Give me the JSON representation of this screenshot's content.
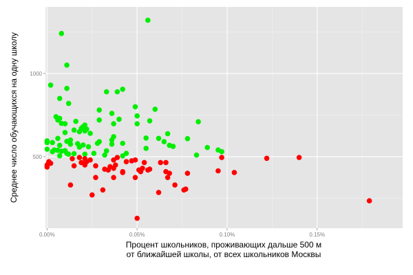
{
  "chart_data": {
    "type": "scatter",
    "xlabel": [
      "Процент школьников, проживающих дальше 500 м",
      "от ближайшей школы, от всех школьников Москвы"
    ],
    "ylabel": "Среднее число обучающихся на одну школу",
    "x_unit": "%",
    "xlim": [
      -0.0009,
      0.1975
    ],
    "ylim": [
      70,
      1400
    ],
    "x_ticks": [
      {
        "value": 0.0,
        "label": "0.00%"
      },
      {
        "value": 0.05,
        "label": "0.05%"
      },
      {
        "value": 0.1,
        "label": "0.10%"
      },
      {
        "value": 0.15,
        "label": "0.15%"
      }
    ],
    "y_ticks": [
      {
        "value": 500,
        "label": "500"
      },
      {
        "value": 1000,
        "label": "1000"
      }
    ],
    "grid": true,
    "legend": "none",
    "series": [
      {
        "color": "#00ee00",
        "points": [
          [
            0.008,
            1240
          ],
          [
            0.056,
            1320
          ],
          [
            0.011,
            1050
          ],
          [
            0.002,
            930
          ],
          [
            0.011,
            910
          ],
          [
            0.042,
            905
          ],
          [
            0.039,
            890
          ],
          [
            0.033,
            890
          ],
          [
            0.007,
            850
          ],
          [
            0.012,
            820
          ],
          [
            0.049,
            800
          ],
          [
            0.06,
            785
          ],
          [
            0.029,
            780
          ],
          [
            0.036,
            760
          ],
          [
            0.05,
            745
          ],
          [
            0.005,
            740
          ],
          [
            0.007,
            730
          ],
          [
            0.04,
            725
          ],
          [
            0.029,
            720
          ],
          [
            0.057,
            715
          ],
          [
            0.016,
            712
          ],
          [
            0.084,
            710
          ],
          [
            0.006,
            720
          ],
          [
            0.008,
            700
          ],
          [
            0.01,
            698
          ],
          [
            0.037,
            698
          ],
          [
            0.05,
            698
          ],
          [
            0.021,
            690
          ],
          [
            0.02,
            680
          ],
          [
            0.019,
            670
          ],
          [
            0.022,
            665
          ],
          [
            0.015,
            660
          ],
          [
            0.021,
            655
          ],
          [
            0.018,
            650
          ],
          [
            0.01,
            645
          ],
          [
            0.024,
            640
          ],
          [
            0.067,
            638
          ],
          [
            0.037,
            620
          ],
          [
            0.055,
            612
          ],
          [
            0.062,
            610
          ],
          [
            0.078,
            608
          ],
          [
            0.013,
            600
          ],
          [
            0.006,
            610
          ],
          [
            0.036,
            600
          ],
          [
            0.0,
            595
          ],
          [
            0.011,
            592
          ],
          [
            0.065,
            590
          ],
          [
            0.029,
            590
          ],
          [
            0.0,
            585
          ],
          [
            0.003,
            585
          ],
          [
            0.028,
            580
          ],
          [
            0.042,
            580
          ],
          [
            0.017,
            578
          ],
          [
            0.036,
            575
          ],
          [
            0.013,
            575
          ],
          [
            0.02,
            570
          ],
          [
            0.007,
            568
          ],
          [
            0.068,
            568
          ],
          [
            0.07,
            562
          ],
          [
            0.023,
            560
          ],
          [
            0.018,
            558
          ],
          [
            0.055,
            550
          ],
          [
            0.089,
            555
          ],
          [
            0.0,
            545
          ],
          [
            0.004,
            540
          ],
          [
            0.006,
            538
          ],
          [
            0.01,
            536
          ],
          [
            0.033,
            535
          ],
          [
            0.003,
            530
          ],
          [
            0.008,
            533
          ],
          [
            0.044,
            520
          ],
          [
            0.026,
            520
          ],
          [
            0.015,
            518
          ],
          [
            0.097,
            530
          ],
          [
            0.095,
            540
          ],
          [
            0.021,
            515
          ],
          [
            0.032,
            510
          ],
          [
            0.083,
            510
          ],
          [
            0.012,
            515
          ],
          [
            0.042,
            505
          ],
          [
            0.007,
            505
          ],
          [
            0.011,
            520
          ]
        ]
      },
      {
        "color": "#ff0000",
        "points": [
          [
            0.001,
            470
          ],
          [
            0.002,
            460
          ],
          [
            0.0,
            450
          ],
          [
            0.0,
            438
          ],
          [
            0.001,
            465
          ],
          [
            0.018,
            495
          ],
          [
            0.021,
            488
          ],
          [
            0.014,
            488
          ],
          [
            0.024,
            480
          ],
          [
            0.022,
            470
          ],
          [
            0.019,
            465
          ],
          [
            0.021,
            460
          ],
          [
            0.021,
            450
          ],
          [
            0.015,
            445
          ],
          [
            0.027,
            445
          ],
          [
            0.035,
            440
          ],
          [
            0.032,
            425
          ],
          [
            0.037,
            430
          ],
          [
            0.034,
            420
          ],
          [
            0.038,
            450
          ],
          [
            0.037,
            480
          ],
          [
            0.039,
            495
          ],
          [
            0.047,
            475
          ],
          [
            0.049,
            480
          ],
          [
            0.054,
            465
          ],
          [
            0.053,
            430
          ],
          [
            0.051,
            420
          ],
          [
            0.056,
            420
          ],
          [
            0.052,
            410
          ],
          [
            0.057,
            425
          ],
          [
            0.066,
            465
          ],
          [
            0.063,
            465
          ],
          [
            0.066,
            410
          ],
          [
            0.067,
            375
          ],
          [
            0.068,
            400
          ],
          [
            0.071,
            330
          ],
          [
            0.076,
            300
          ],
          [
            0.077,
            305
          ],
          [
            0.078,
            400
          ],
          [
            0.095,
            415
          ],
          [
            0.097,
            495
          ],
          [
            0.104,
            405
          ],
          [
            0.122,
            490
          ],
          [
            0.14,
            495
          ],
          [
            0.179,
            235
          ],
          [
            0.013,
            330
          ],
          [
            0.027,
            375
          ],
          [
            0.031,
            300
          ],
          [
            0.025,
            270
          ],
          [
            0.037,
            375
          ],
          [
            0.042,
            405
          ],
          [
            0.049,
            375
          ],
          [
            0.044,
            470
          ],
          [
            0.062,
            285
          ],
          [
            0.05,
            130
          ],
          [
            0.042,
            410
          ]
        ]
      }
    ]
  }
}
